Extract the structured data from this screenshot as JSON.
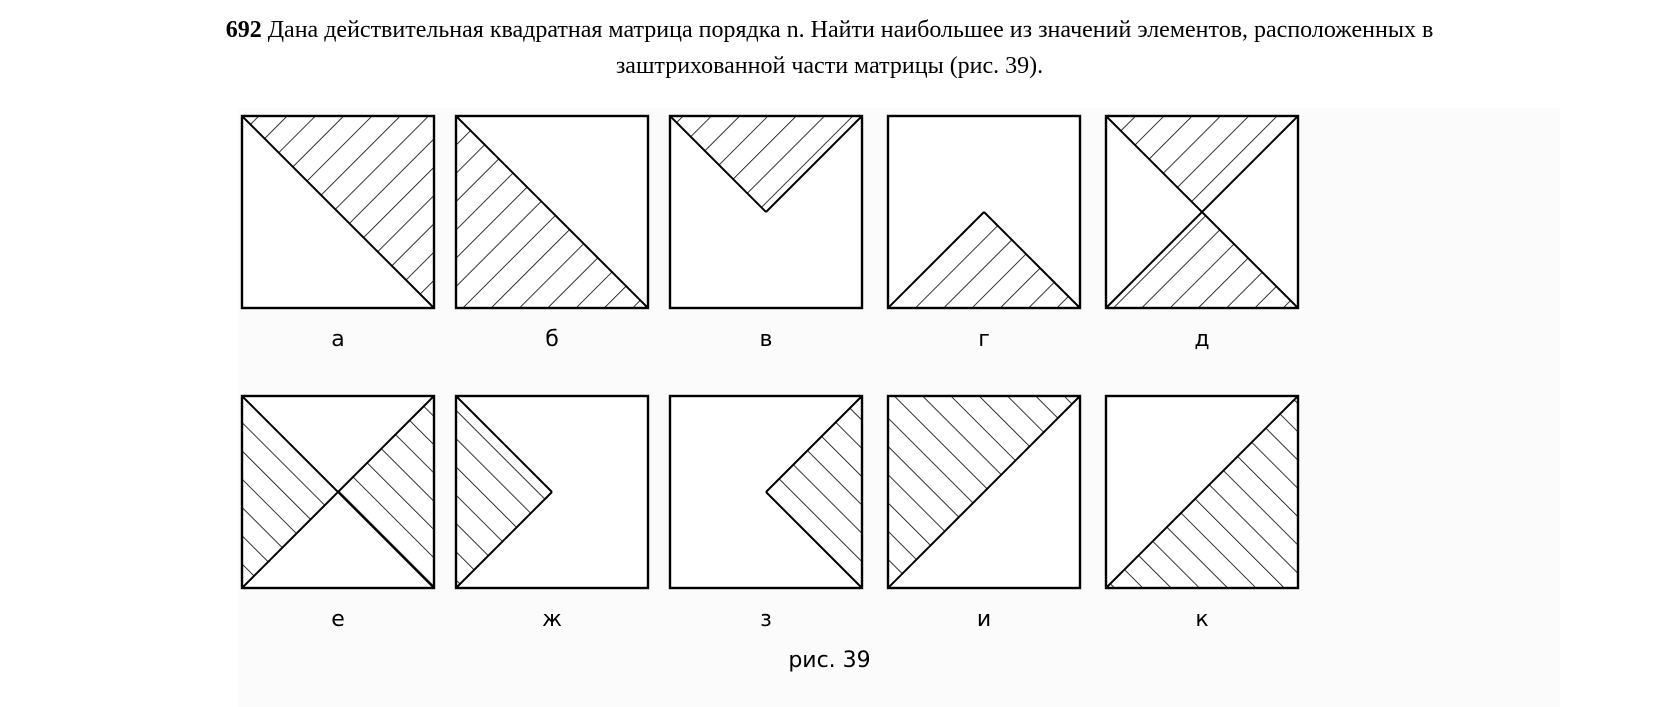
{
  "problem": {
    "number": "692",
    "line1": "Дана действительная квадратная матрица порядка n. Найти наибольшее из значений элементов, расположенных в",
    "line2": "заштрихованной части матрицы (рис. 39)."
  },
  "figure": {
    "caption": "рис. 39",
    "panels": [
      {
        "label": "а",
        "shading": "upper-right triangle above main diagonal"
      },
      {
        "label": "б",
        "shading": "lower-left triangle below main diagonal"
      },
      {
        "label": "в",
        "shading": "top triangle"
      },
      {
        "label": "г",
        "shading": "bottom triangle"
      },
      {
        "label": "д",
        "shading": "top and bottom triangles"
      },
      {
        "label": "е",
        "shading": "left and right triangles"
      },
      {
        "label": "ж",
        "shading": "left triangle"
      },
      {
        "label": "з",
        "shading": "right triangle"
      },
      {
        "label": "и",
        "shading": "upper-left triangle above anti-diagonal"
      },
      {
        "label": "к",
        "shading": "lower-right triangle below anti-diagonal"
      }
    ]
  }
}
